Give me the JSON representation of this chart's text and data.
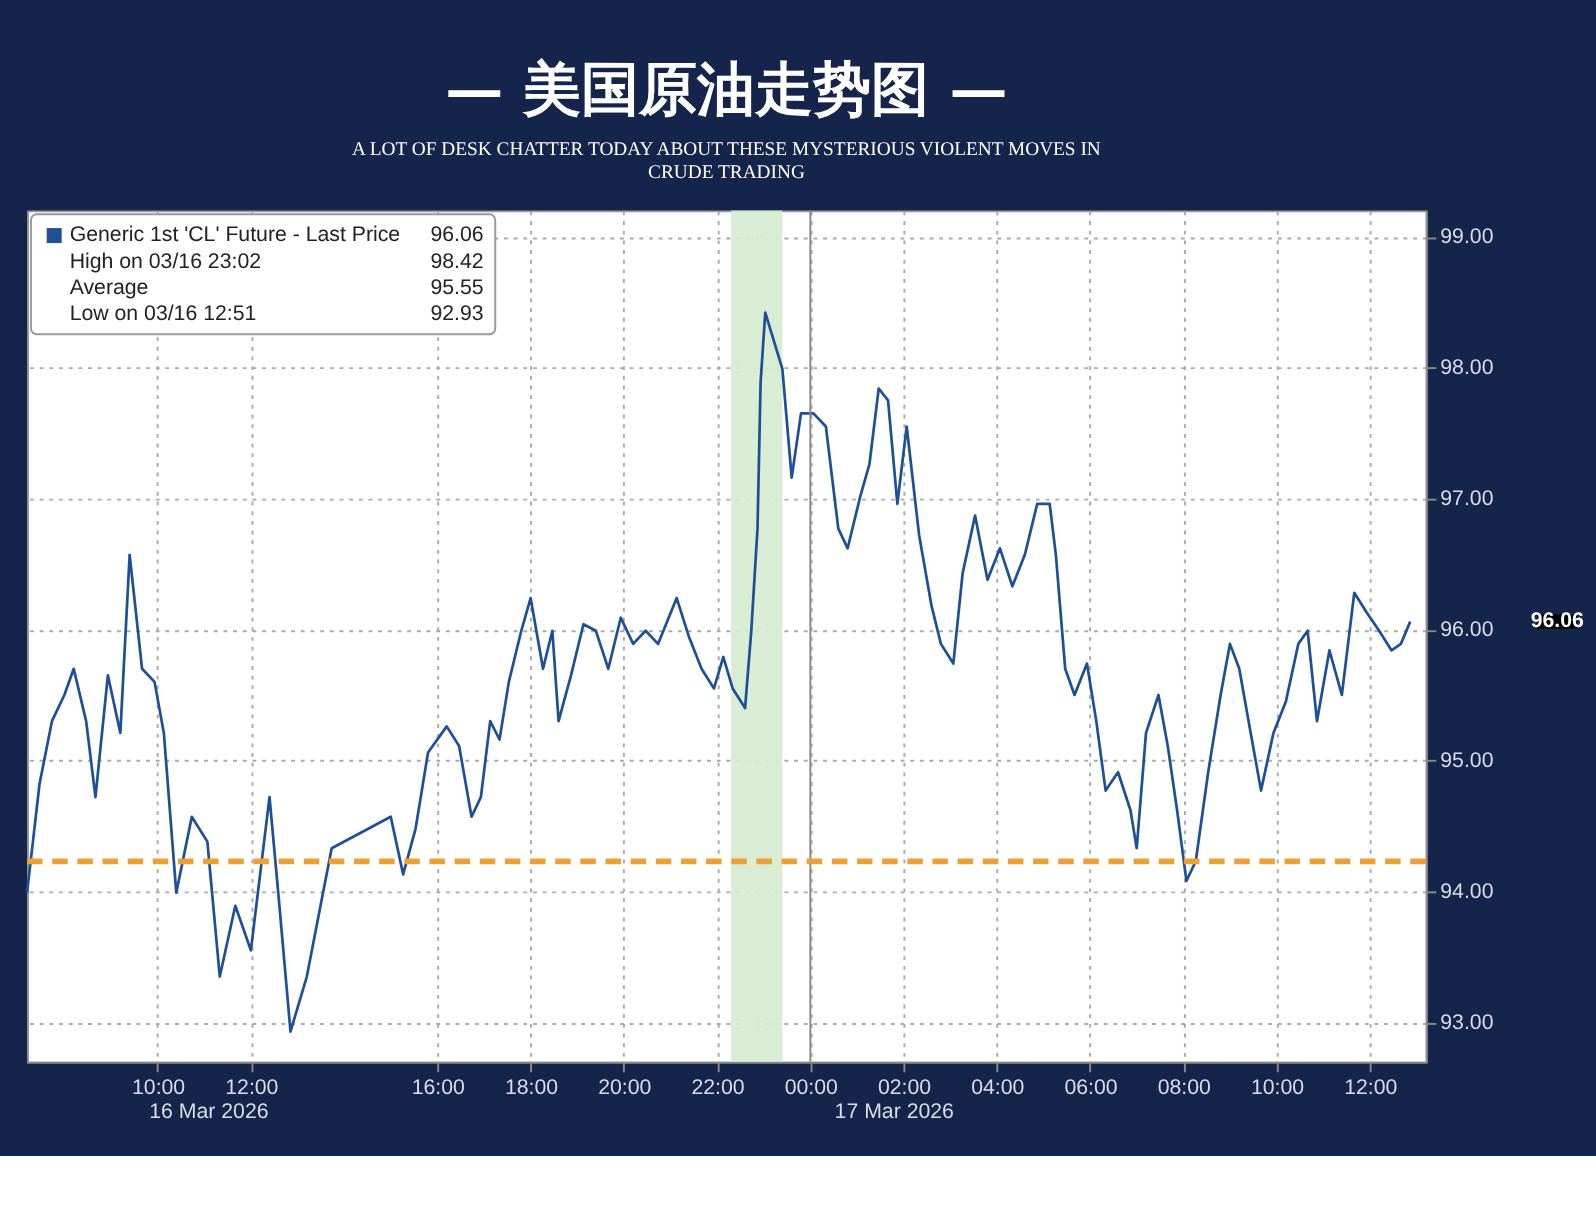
{
  "chart_data": {
    "type": "line",
    "title": "— 美国原油走势图 —",
    "subtitle": "A LOT OF DESK CHATTER TODAY ABOUT THESE MYSTERIOUS VIOLENT MOVES IN CRUDE TRADING",
    "series": [
      {
        "name": "Generic 1st 'CL' Future - Last Price",
        "color": "#1f4f96",
        "x": [
          "2026-03-16T07:12",
          "2026-03-16T07:28",
          "2026-03-16T07:44",
          "2026-03-16T08:00",
          "2026-03-16T08:12",
          "2026-03-16T08:28",
          "2026-03-16T08:40",
          "2026-03-16T08:56",
          "2026-03-16T09:12",
          "2026-03-16T09:24",
          "2026-03-16T09:40",
          "2026-03-16T09:56",
          "2026-03-16T10:08",
          "2026-03-16T10:24",
          "2026-03-16T10:44",
          "2026-03-16T11:04",
          "2026-03-16T11:20",
          "2026-03-16T11:40",
          "2026-03-16T12:00",
          "2026-03-16T12:24",
          "2026-03-16T12:36",
          "2026-03-16T12:51",
          "2026-03-16T13:12",
          "2026-03-16T13:28",
          "2026-03-16T13:44",
          "2026-03-16T15:00",
          "2026-03-16T15:16",
          "2026-03-16T15:32",
          "2026-03-16T15:48",
          "2026-03-16T16:12",
          "2026-03-16T16:28",
          "2026-03-16T16:44",
          "2026-03-16T16:56",
          "2026-03-16T17:08",
          "2026-03-16T17:20",
          "2026-03-16T17:32",
          "2026-03-16T17:48",
          "2026-03-16T18:00",
          "2026-03-16T18:16",
          "2026-03-16T18:28",
          "2026-03-16T18:36",
          "2026-03-16T18:52",
          "2026-03-16T19:08",
          "2026-03-16T19:24",
          "2026-03-16T19:40",
          "2026-03-16T19:56",
          "2026-03-16T20:12",
          "2026-03-16T20:28",
          "2026-03-16T20:44",
          "2026-03-16T21:08",
          "2026-03-16T21:24",
          "2026-03-16T21:40",
          "2026-03-16T21:56",
          "2026-03-16T22:08",
          "2026-03-16T22:20",
          "2026-03-16T22:36",
          "2026-03-16T22:44",
          "2026-03-16T22:52",
          "2026-03-16T22:56",
          "2026-03-16T23:02",
          "2026-03-16T23:24",
          "2026-03-16T23:36",
          "2026-03-16T23:48",
          "2026-03-17T00:04",
          "2026-03-17T00:20",
          "2026-03-17T00:36",
          "2026-03-17T00:48",
          "2026-03-17T01:04",
          "2026-03-17T01:16",
          "2026-03-17T01:28",
          "2026-03-17T01:40",
          "2026-03-17T01:52",
          "2026-03-17T02:04",
          "2026-03-17T02:20",
          "2026-03-17T02:36",
          "2026-03-17T02:48",
          "2026-03-17T03:04",
          "2026-03-17T03:16",
          "2026-03-17T03:32",
          "2026-03-17T03:48",
          "2026-03-17T04:04",
          "2026-03-17T04:20",
          "2026-03-17T04:36",
          "2026-03-17T04:52",
          "2026-03-17T05:08",
          "2026-03-17T05:16",
          "2026-03-17T05:28",
          "2026-03-17T05:40",
          "2026-03-17T05:56",
          "2026-03-17T06:08",
          "2026-03-17T06:20",
          "2026-03-17T06:36",
          "2026-03-17T06:52",
          "2026-03-17T07:00",
          "2026-03-17T07:12",
          "2026-03-17T07:28",
          "2026-03-17T07:40",
          "2026-03-17T07:52",
          "2026-03-17T08:04",
          "2026-03-17T08:16",
          "2026-03-17T08:32",
          "2026-03-17T08:48",
          "2026-03-17T09:00",
          "2026-03-17T09:12",
          "2026-03-17T09:24",
          "2026-03-17T09:40",
          "2026-03-17T09:56",
          "2026-03-17T10:12",
          "2026-03-17T10:28",
          "2026-03-17T10:40",
          "2026-03-17T10:52",
          "2026-03-17T11:08",
          "2026-03-17T11:24",
          "2026-03-17T11:40",
          "2026-03-17T11:56",
          "2026-03-17T12:12",
          "2026-03-17T12:28",
          "2026-03-17T12:40",
          "2026-03-17T12:52"
        ],
        "values": [
          93.99,
          94.82,
          95.3,
          95.5,
          95.7,
          95.3,
          94.72,
          95.65,
          95.21,
          96.57,
          95.7,
          95.6,
          95.21,
          93.99,
          94.57,
          94.38,
          93.35,
          93.89,
          93.55,
          94.72,
          93.94,
          92.93,
          93.35,
          93.84,
          94.33,
          94.57,
          94.13,
          94.48,
          95.06,
          95.26,
          95.11,
          94.57,
          94.72,
          95.3,
          95.16,
          95.6,
          95.99,
          96.24,
          95.7,
          95.99,
          95.3,
          95.65,
          96.04,
          95.99,
          95.7,
          96.09,
          95.89,
          95.99,
          95.89,
          96.24,
          95.94,
          95.7,
          95.55,
          95.79,
          95.55,
          95.4,
          95.99,
          96.77,
          97.89,
          98.42,
          97.99,
          97.16,
          97.65,
          97.65,
          97.55,
          96.77,
          96.62,
          97.01,
          97.26,
          97.84,
          97.75,
          96.96,
          97.55,
          96.72,
          96.18,
          95.89,
          95.74,
          96.43,
          96.87,
          96.38,
          96.62,
          96.33,
          96.57,
          96.96,
          96.96,
          96.57,
          95.7,
          95.5,
          95.74,
          95.3,
          94.77,
          94.91,
          94.62,
          94.33,
          95.21,
          95.5,
          95.11,
          94.62,
          94.08,
          94.23,
          94.91,
          95.5,
          95.89,
          95.7,
          95.3,
          94.77,
          95.21,
          95.45,
          95.89,
          95.99,
          95.3,
          95.84,
          95.5,
          96.28,
          96.13,
          95.99,
          95.84,
          95.89,
          96.06
        ]
      }
    ],
    "xlim": [
      "2026-03-16T07:12",
      "2026-03-17T13:12"
    ],
    "xticks": [
      {
        "value": "2026-03-16T10:00",
        "label": "10:00"
      },
      {
        "value": "2026-03-16T12:00",
        "label": "12:00"
      },
      {
        "value": "2026-03-16T16:00",
        "label": "16:00"
      },
      {
        "value": "2026-03-16T18:00",
        "label": "18:00"
      },
      {
        "value": "2026-03-16T20:00",
        "label": "20:00"
      },
      {
        "value": "2026-03-16T22:00",
        "label": "22:00"
      },
      {
        "value": "2026-03-17T00:00",
        "label": "00:00"
      },
      {
        "value": "2026-03-17T02:00",
        "label": "02:00"
      },
      {
        "value": "2026-03-17T04:00",
        "label": "04:00"
      },
      {
        "value": "2026-03-17T06:00",
        "label": "06:00"
      },
      {
        "value": "2026-03-17T08:00",
        "label": "08:00"
      },
      {
        "value": "2026-03-17T10:00",
        "label": "10:00"
      },
      {
        "value": "2026-03-17T12:00",
        "label": "12:00"
      }
    ],
    "ylim": [
      92.7,
      99.2
    ],
    "yticks": [
      {
        "value": 93,
        "label": "93.00"
      },
      {
        "value": 94,
        "label": "94.00"
      },
      {
        "value": 95,
        "label": "95.00"
      },
      {
        "value": 96,
        "label": "96.00"
      },
      {
        "value": 97,
        "label": "97.00"
      },
      {
        "value": 98,
        "label": "98.00"
      },
      {
        "value": 99,
        "label": "99.00"
      }
    ],
    "ref_lines": [
      {
        "axis": "x",
        "value": "2026-03-17T00:00",
        "color": "#888888"
      },
      {
        "axis": "y",
        "value": 94.23,
        "color": "#f0a030",
        "line_style": "dashed"
      }
    ],
    "bands": [
      {
        "axis": "x",
        "from": "2026-03-16T22:18",
        "to": "2026-03-16T23:24",
        "color": "#d4ebcf"
      }
    ],
    "annotations": [
      "16 Mar 2026",
      "17 Mar 2026",
      "96.06",
      "High on 03/16 23:02",
      "98.42",
      "Average",
      "95.55",
      "Low on 03/16 12:51",
      "92.93",
      "96.06"
    ],
    "grid": true,
    "legend": "top left"
  }
}
